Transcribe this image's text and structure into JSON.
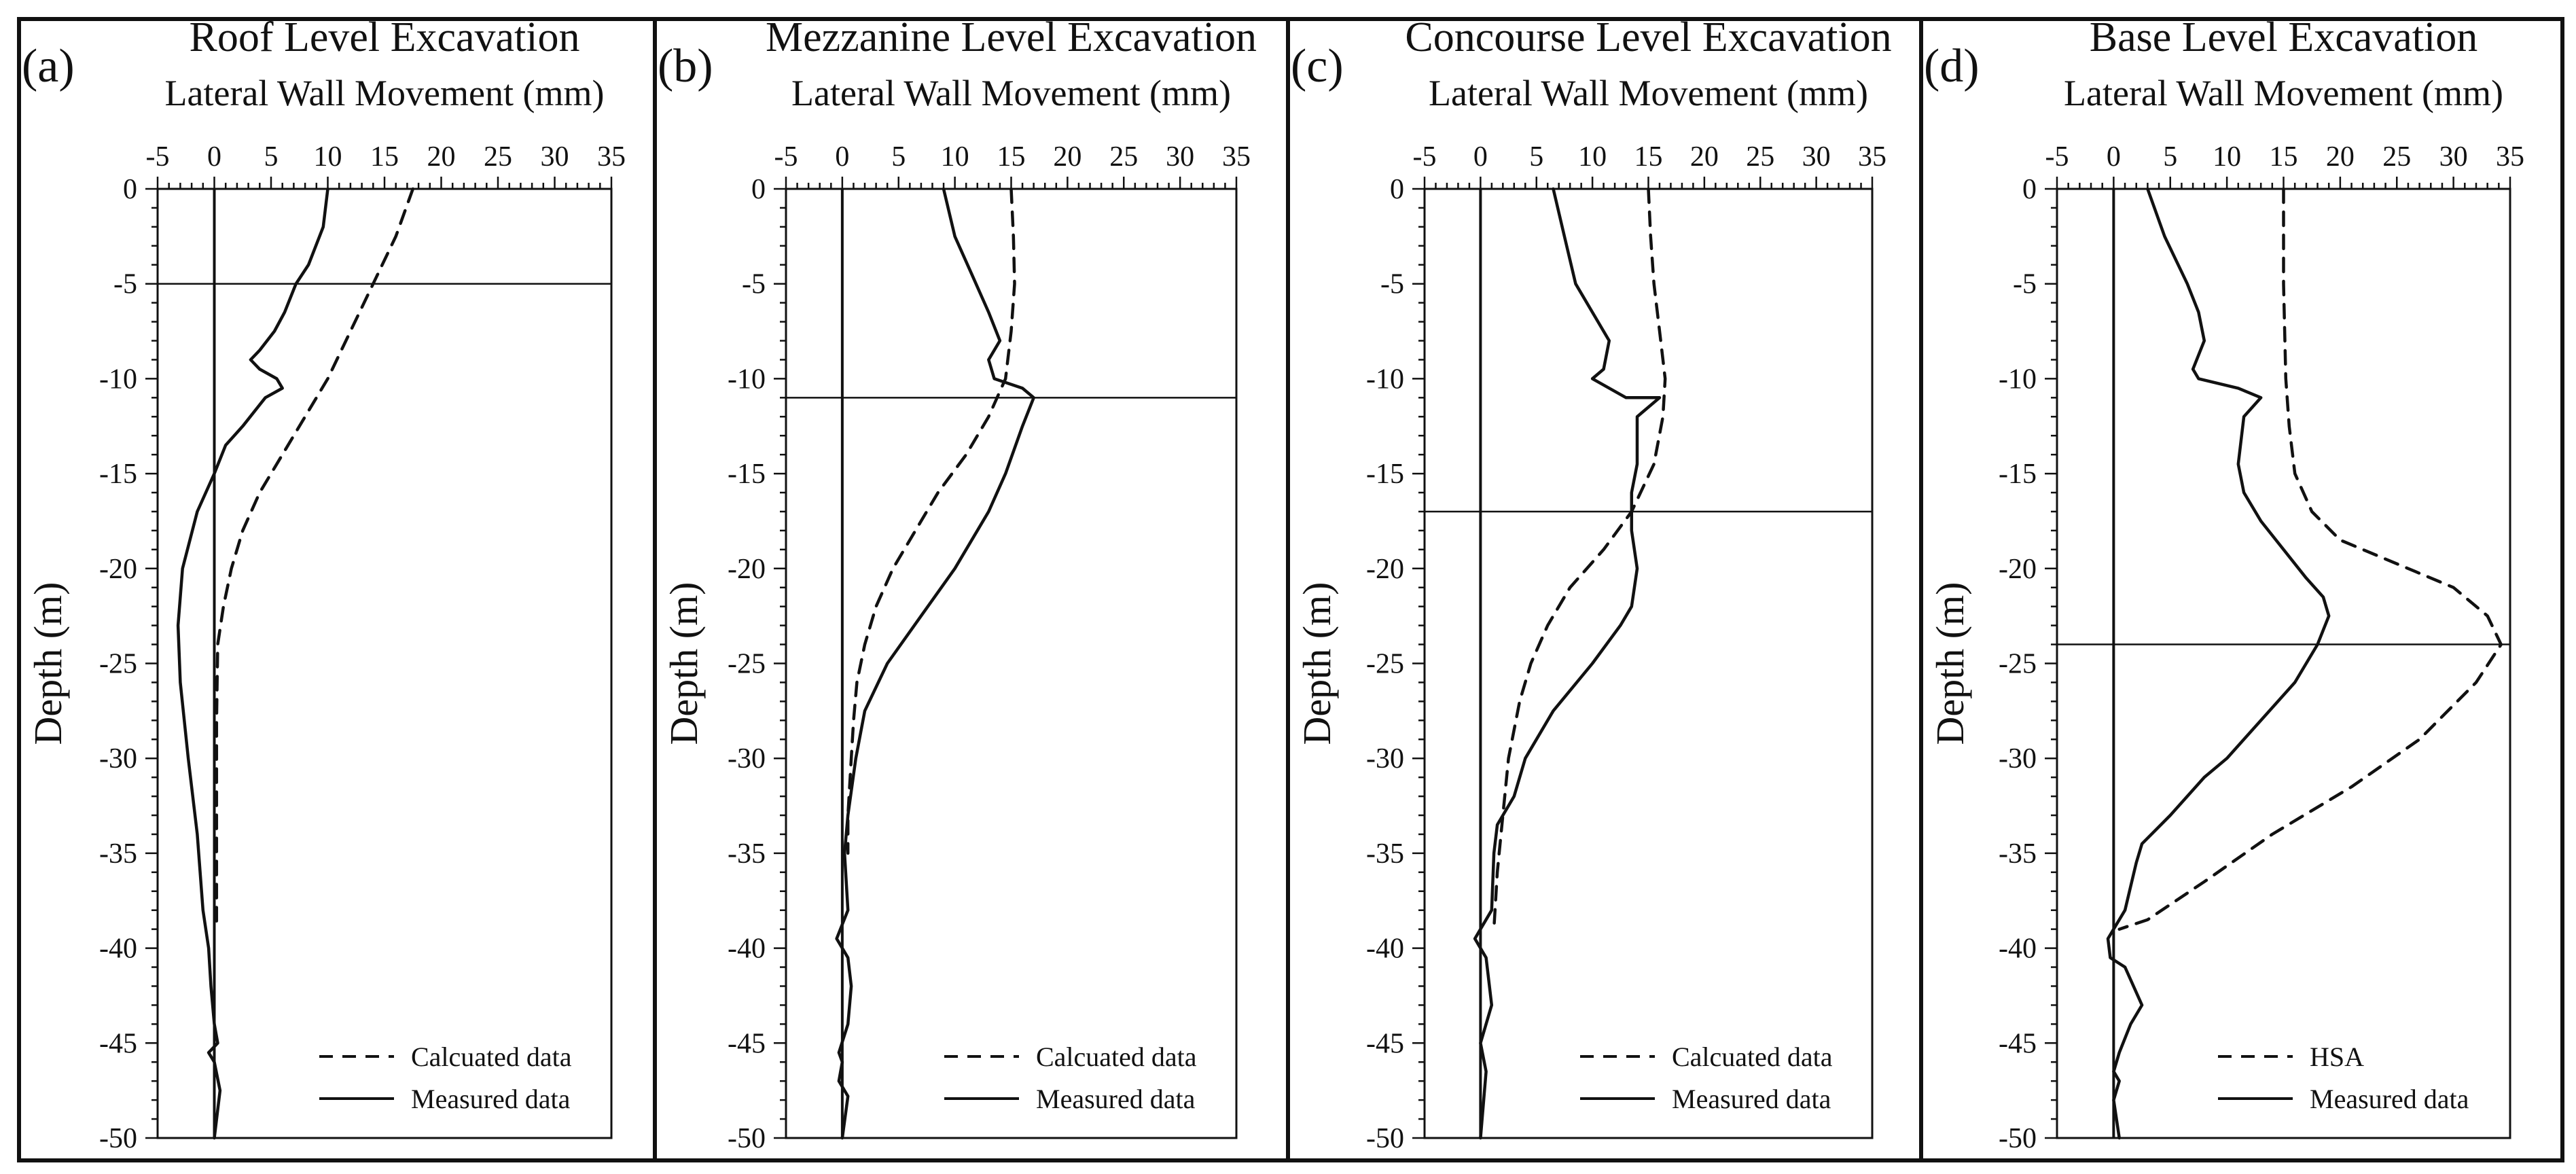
{
  "chart_data": [
    {
      "type": "line",
      "panel_letter": "(a)",
      "title": "Roof Level Excavation",
      "xlabel": "Lateral Wall Movement (mm)",
      "ylabel": "Depth (m)",
      "xlim": [
        -5,
        35
      ],
      "ylim": [
        -50,
        0
      ],
      "x_ticks": [
        "-5",
        "0",
        "5",
        "10",
        "15",
        "20",
        "25",
        "30",
        "35"
      ],
      "y_ticks": [
        "0",
        "-5",
        "-10",
        "-15",
        "-20",
        "-25",
        "-30",
        "-35",
        "-40",
        "-45",
        "-50"
      ],
      "excavation_depth": -5,
      "legend": [
        "Calcuated data",
        "Measured data"
      ],
      "series": [
        {
          "name": "Calcuated data",
          "style": "dashed",
          "x": [
            17.5,
            16,
            14,
            12,
            10,
            8,
            6,
            4,
            2.5,
            1.5,
            0.8,
            0.3,
            0.2,
            0.2,
            0.2,
            0.2,
            0.2
          ],
          "y": [
            0,
            -2.5,
            -5,
            -7.5,
            -10,
            -12,
            -14,
            -16,
            -18,
            -20,
            -22,
            -24,
            -28,
            -32,
            -35,
            -38,
            -39
          ]
        },
        {
          "name": "Measured data",
          "style": "solid",
          "x": [
            10,
            9.6,
            8.3,
            7.2,
            6.2,
            5.3,
            4,
            3.2,
            4,
            5.5,
            6,
            4.5,
            2.5,
            1,
            0,
            -1.5,
            -2.8,
            -3.2,
            -3,
            -2.3,
            -1.5,
            -1,
            -0.5,
            -0.3,
            0,
            0.3,
            -0.5,
            0,
            0.5,
            0
          ],
          "y": [
            0,
            -2,
            -4,
            -5,
            -6.5,
            -7.5,
            -8.5,
            -9,
            -9.5,
            -10,
            -10.5,
            -11,
            -12.5,
            -13.5,
            -15,
            -17,
            -20,
            -23,
            -26,
            -30,
            -34,
            -38,
            -40,
            -42,
            -44,
            -45,
            -45.5,
            -46,
            -47.5,
            -50
          ]
        }
      ]
    },
    {
      "type": "line",
      "panel_letter": "(b)",
      "title": "Mezzanine Level Excavation",
      "xlabel": "Lateral Wall Movement (mm)",
      "ylabel": "Depth (m)",
      "xlim": [
        -5,
        35
      ],
      "ylim": [
        -50,
        0
      ],
      "x_ticks": [
        "-5",
        "0",
        "5",
        "10",
        "15",
        "20",
        "25",
        "30",
        "35"
      ],
      "y_ticks": [
        "0",
        "-5",
        "-10",
        "-15",
        "-20",
        "-25",
        "-30",
        "-35",
        "-40",
        "-45",
        "-50"
      ],
      "excavation_depth": -11,
      "legend": [
        "Calcuated data",
        "Measured data"
      ],
      "series": [
        {
          "name": "Calcuated data",
          "style": "dashed",
          "x": [
            15,
            15.2,
            15.3,
            15,
            14.5,
            13,
            11,
            8.5,
            6.5,
            4.5,
            3,
            2,
            1.3,
            1,
            0.8,
            0.5,
            0.5
          ],
          "y": [
            0,
            -2.5,
            -5,
            -7.5,
            -10,
            -12,
            -14,
            -16,
            -18,
            -20,
            -22,
            -24,
            -26,
            -28,
            -30,
            -33,
            -35
          ]
        },
        {
          "name": "Measured data",
          "style": "solid",
          "x": [
            9,
            10,
            11.5,
            13,
            14,
            13,
            13.5,
            16,
            17,
            16,
            14.5,
            13,
            10,
            7,
            4,
            2,
            1.2,
            0.5,
            0.2,
            0.5,
            -0.5,
            0.5,
            0.8,
            0.5,
            -0.3,
            0,
            -0.3,
            0.5,
            0
          ],
          "y": [
            0,
            -2.5,
            -4.5,
            -6.5,
            -8,
            -9,
            -10,
            -10.5,
            -11,
            -12.5,
            -15,
            -17,
            -20,
            -22.5,
            -25,
            -27.5,
            -30,
            -33,
            -35,
            -38,
            -39.5,
            -40.5,
            -42,
            -44,
            -45.5,
            -46,
            -47,
            -47.8,
            -50
          ]
        }
      ]
    },
    {
      "type": "line",
      "panel_letter": "(c)",
      "title": "Concourse Level Excavation",
      "xlabel": "Lateral Wall Movement (mm)",
      "ylabel": "Depth (m)",
      "xlim": [
        -5,
        35
      ],
      "ylim": [
        -50,
        0
      ],
      "x_ticks": [
        "-5",
        "0",
        "5",
        "10",
        "15",
        "20",
        "25",
        "30",
        "35"
      ],
      "y_ticks": [
        "0",
        "-5",
        "-10",
        "-15",
        "-20",
        "-25",
        "-30",
        "-35",
        "-40",
        "-45",
        "-50"
      ],
      "excavation_depth": -17,
      "legend": [
        "Calcuated data",
        "Measured data"
      ],
      "series": [
        {
          "name": "Calcuated data",
          "style": "dashed",
          "x": [
            15,
            15.2,
            15.5,
            16,
            16.5,
            16.3,
            15.5,
            13.5,
            11,
            8,
            6,
            4.5,
            3.5,
            2.5,
            2,
            1.5,
            1.2
          ],
          "y": [
            0,
            -2.5,
            -5,
            -7.5,
            -10,
            -12,
            -14.5,
            -17,
            -19,
            -21,
            -23,
            -25,
            -27,
            -30,
            -33,
            -36,
            -39
          ]
        },
        {
          "name": "Measured data",
          "style": "solid",
          "x": [
            6.5,
            7.5,
            8.5,
            10,
            11.5,
            11,
            10,
            13,
            16,
            14,
            14,
            13.5,
            13.5,
            14,
            13.5,
            12.5,
            10,
            6.5,
            4,
            3,
            1.5,
            1.2,
            1,
            -0.5,
            0.5,
            1,
            0,
            0.5,
            0
          ],
          "y": [
            0,
            -2.5,
            -5,
            -6.5,
            -8,
            -9.5,
            -10,
            -11,
            -11,
            -12,
            -14.5,
            -16,
            -18,
            -20,
            -22,
            -23,
            -25,
            -27.5,
            -30,
            -32,
            -33.5,
            -35,
            -38,
            -39.5,
            -40.5,
            -43,
            -45,
            -46.5,
            -50
          ]
        }
      ]
    },
    {
      "type": "line",
      "panel_letter": "(d)",
      "title": "Base Level Excavation",
      "xlabel": "Lateral Wall Movement (mm)",
      "ylabel": "Depth (m)",
      "xlim": [
        -5,
        35
      ],
      "ylim": [
        -50,
        0
      ],
      "x_ticks": [
        "-5",
        "0",
        "5",
        "10",
        "15",
        "20",
        "25",
        "30",
        "35"
      ],
      "y_ticks": [
        "0",
        "-5",
        "-10",
        "-15",
        "-20",
        "-25",
        "-30",
        "-35",
        "-40",
        "-45",
        "-50"
      ],
      "excavation_depth": -24,
      "legend": [
        "HSA",
        "Measured data"
      ],
      "series": [
        {
          "name": "HSA",
          "style": "dashed",
          "x": [
            15,
            15,
            15.2,
            15.5,
            16,
            17.5,
            20,
            26,
            30,
            33,
            34.2,
            32,
            27,
            21,
            14,
            8,
            3,
            0.5
          ],
          "y": [
            0,
            -5,
            -10,
            -12.5,
            -15,
            -17,
            -18.5,
            -20,
            -21,
            -22.5,
            -24,
            -26,
            -29,
            -31.5,
            -34,
            -36.5,
            -38.5,
            -39
          ]
        },
        {
          "name": "Measured data",
          "style": "solid",
          "x": [
            3,
            4.5,
            6.5,
            7.5,
            8,
            7,
            7.5,
            11,
            13,
            11.5,
            11,
            11.5,
            13,
            15,
            17,
            18.5,
            19,
            18,
            16,
            13,
            10,
            8,
            5,
            2.5,
            2,
            1,
            -0.5,
            -0.3,
            1,
            2.5,
            1.5,
            0.5,
            0,
            0.5,
            0,
            0.5
          ],
          "y": [
            0,
            -2.5,
            -5,
            -6.5,
            -8,
            -9.5,
            -10,
            -10.5,
            -11,
            -12,
            -14.5,
            -16,
            -17.5,
            -19,
            -20.5,
            -21.5,
            -22.5,
            -24,
            -26,
            -28,
            -30,
            -31,
            -33,
            -34.5,
            -35.5,
            -38,
            -39.5,
            -40.5,
            -41,
            -43,
            -44,
            -45.5,
            -46.5,
            -47,
            -48,
            -50
          ]
        }
      ]
    }
  ]
}
